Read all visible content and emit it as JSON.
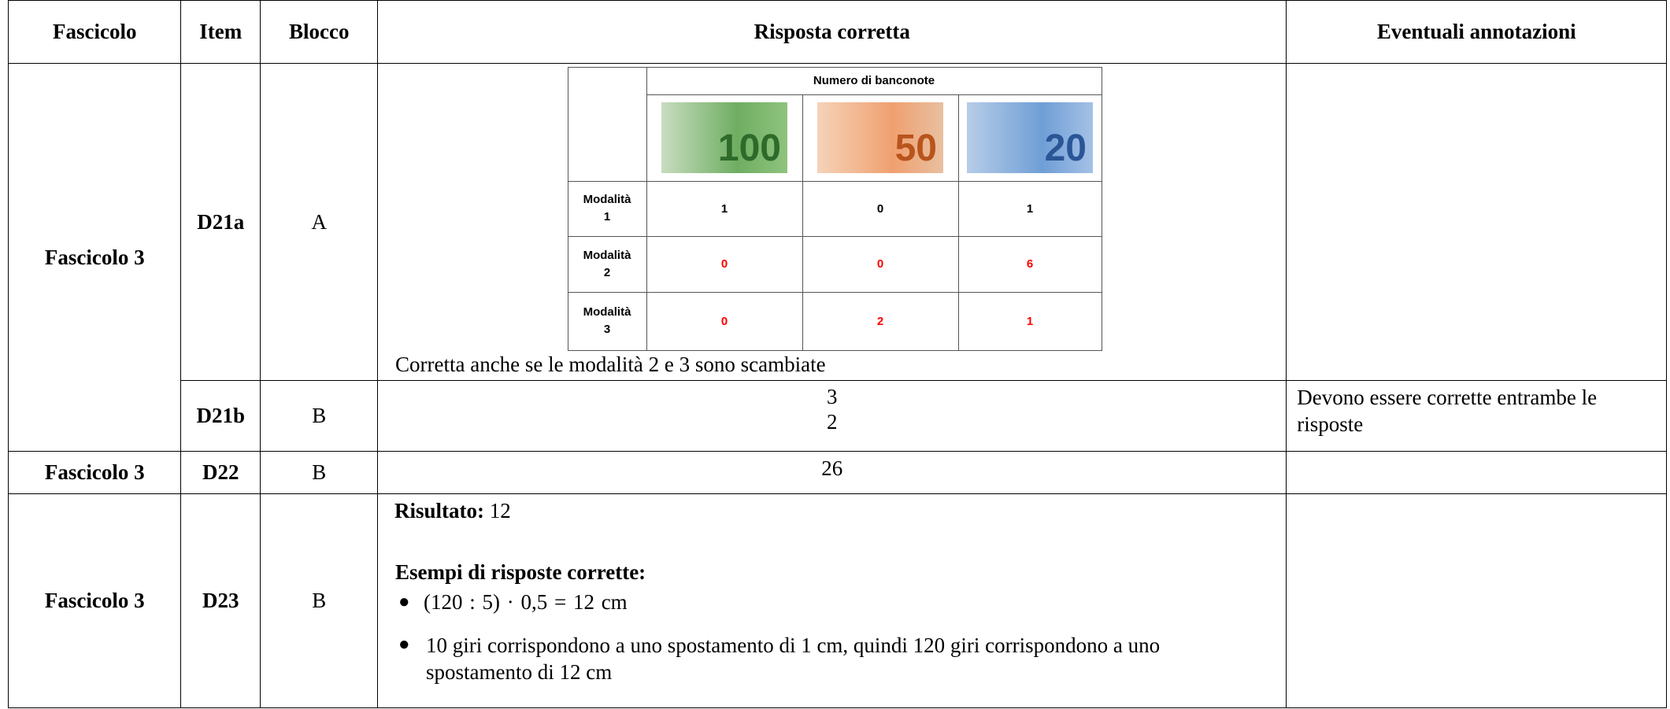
{
  "header": [
    "Fascicolo",
    "Item",
    "Blocco",
    "Risposta corretta",
    "Eventuali annotazioni"
  ],
  "rows": [
    {
      "fascicolo": "Fascicolo 3",
      "item": "D21a",
      "blocco": "A",
      "risposta": {
        "table": {
          "title": "Numero di banconote",
          "banknotes": [
            "100",
            "50",
            "20"
          ],
          "rows": [
            {
              "label": "Modalità 1",
              "values": [
                "1",
                "0",
                "1"
              ],
              "color": "#000000"
            },
            {
              "label": "Modalità 2",
              "values": [
                "0",
                "0",
                "6"
              ],
              "color": "#ff0000"
            },
            {
              "label": "Modalità 3",
              "values": [
                "0",
                "2",
                "1"
              ],
              "color": "#ff0000"
            }
          ]
        },
        "note": "Corretta anche se le modalità 2 e 3 sono scambiate"
      }
    },
    {
      "item": "D21b",
      "blocco": "B",
      "risposta": [
        "3",
        "2"
      ],
      "annotazioni": "Devono essere corrette entrambe le risposte"
    },
    {
      "fascicolo": "Fascicolo 3",
      "item": "D22",
      "blocco": "B",
      "risposta": "26"
    },
    {
      "fascicolo": "Fascicolo 3",
      "item": "D23",
      "blocco": "B",
      "risposta": {
        "result_label": "Risultato:",
        "result": "12",
        "examples_title": "Esempi di risposte corrette:",
        "examples": [
          "(120 : 5) · 0,5 = 12  cm",
          "10 giri corrispondono a uno spostamento di 1 cm, quindi 120 giri corrispondono a uno spostamento di 12 cm"
        ]
      }
    }
  ]
}
